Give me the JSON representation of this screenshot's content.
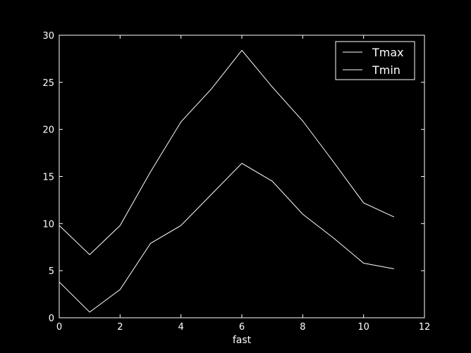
{
  "chart_data": {
    "type": "line",
    "title": "",
    "xlabel": "fast",
    "ylabel": "",
    "xlim": [
      0,
      12
    ],
    "ylim": [
      0,
      30
    ],
    "xticks": [
      0,
      2,
      4,
      6,
      8,
      10,
      12
    ],
    "yticks": [
      0,
      5,
      10,
      15,
      20,
      25,
      30
    ],
    "x": [
      0,
      1,
      2,
      3,
      4,
      5,
      6,
      7,
      8,
      9,
      10,
      11
    ],
    "series": [
      {
        "name": "Tmax",
        "values": [
          9.8,
          6.7,
          9.8,
          15.5,
          20.8,
          24.3,
          28.4,
          24.5,
          20.9,
          16.6,
          12.2,
          10.7
        ]
      },
      {
        "name": "Tmin",
        "values": [
          3.8,
          0.6,
          3.0,
          7.9,
          9.8,
          13.1,
          16.4,
          14.5,
          11.0,
          8.5,
          5.8,
          5.2
        ]
      }
    ],
    "legend": "top-right",
    "grid": false,
    "colors": {
      "background": "#000000",
      "axes": "#ffffff",
      "lines": "#ffffff"
    }
  }
}
